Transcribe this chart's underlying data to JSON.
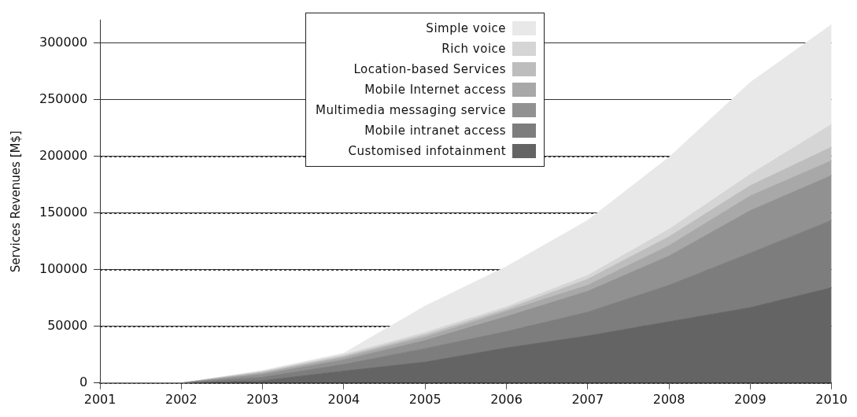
{
  "chart_data": {
    "type": "area",
    "stacked": true,
    "ylabel": "Services Revenues [M$]",
    "categories": [
      "2001",
      "2002",
      "2003",
      "2004",
      "2005",
      "2006",
      "2007",
      "2008",
      "2009",
      "2010"
    ],
    "series": [
      {
        "name": "Customised infotainment",
        "color": "#646464",
        "values": [
          0,
          0,
          2000,
          10500,
          18400,
          30900,
          41500,
          54000,
          66500,
          84000
        ]
      },
      {
        "name": "Mobile intranet access",
        "color": "#7d7d7d",
        "values": [
          0,
          0,
          3000,
          5900,
          11900,
          14500,
          21000,
          32200,
          48000,
          59400
        ]
      },
      {
        "name": "Multimedia messaging service",
        "color": "#919191",
        "values": [
          0,
          0,
          2500,
          4000,
          7200,
          13200,
          18400,
          25700,
          37500,
          39600
        ]
      },
      {
        "name": "Mobile Internet access",
        "color": "#a8a8a8",
        "values": [
          0,
          0,
          1300,
          2000,
          3000,
          4600,
          5300,
          9200,
          13000,
          13000
        ]
      },
      {
        "name": "Location-based Services",
        "color": "#bdbdbd",
        "values": [
          0,
          0,
          800,
          1300,
          2000,
          1900,
          5300,
          7900,
          9000,
          12000
        ]
      },
      {
        "name": "Rich voice",
        "color": "#d5d5d5",
        "values": [
          0,
          0,
          700,
          1300,
          2000,
          2000,
          3300,
          6500,
          10000,
          20000
        ]
      },
      {
        "name": "Simple voice",
        "color": "#e8e8e8",
        "values": [
          0,
          0,
          700,
          1300,
          23300,
          35500,
          48600,
          63500,
          81000,
          88000
        ]
      }
    ],
    "ylim": [
      0,
      320000
    ],
    "yticks": [
      0,
      50000,
      100000,
      150000,
      200000,
      250000,
      300000
    ],
    "grid": "y",
    "legend": "top"
  }
}
